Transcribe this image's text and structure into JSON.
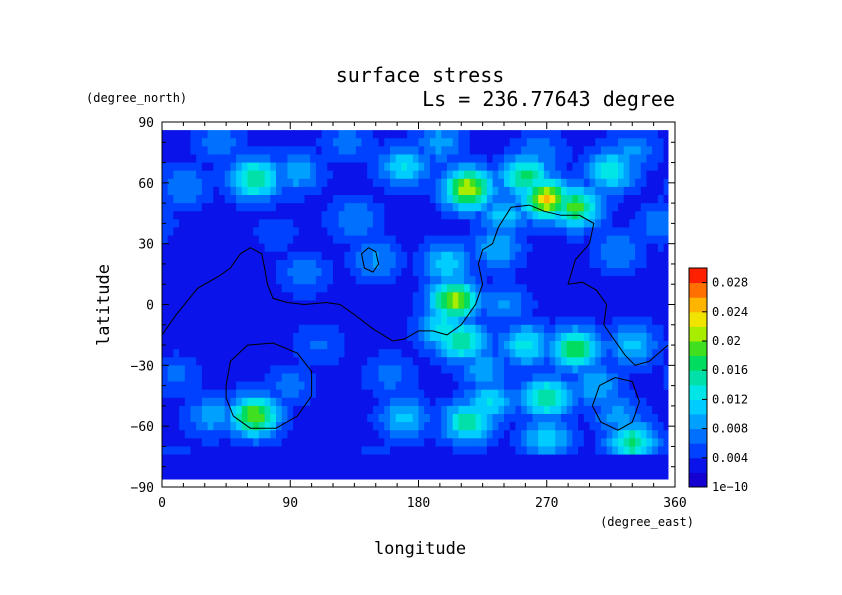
{
  "chart_data": {
    "type": "heatmap",
    "title": "surface stress",
    "subtitle": "Ls = 236.77643 degree",
    "xlabel": "longitude",
    "ylabel": "latitude",
    "x_unit": "(degree_east)",
    "y_unit": "(degree_north)",
    "xlim": [
      0,
      360
    ],
    "ylim": [
      -90,
      90
    ],
    "x_ticks": [
      0,
      90,
      180,
      270,
      360
    ],
    "x_tick_labels": [
      "0",
      "90",
      "180",
      "270",
      "360"
    ],
    "y_ticks": [
      90,
      60,
      30,
      0,
      -30,
      -60,
      -90
    ],
    "y_tick_labels": [
      "90",
      "60",
      "30",
      "0",
      "−30",
      "−60",
      "−90"
    ],
    "data_extent": {
      "lon": [
        0,
        355
      ],
      "lat": [
        -86,
        86
      ]
    },
    "background_value": 0.003,
    "colorbar": {
      "min": 0,
      "max": 0.03,
      "levels": 15,
      "colors": [
        "#1400d0",
        "#0a14ea",
        "#0040ff",
        "#0070ff",
        "#00a0ff",
        "#00ccff",
        "#00e6e6",
        "#00e0a8",
        "#00dc60",
        "#40e020",
        "#a8ec00",
        "#f0e400",
        "#ffb400",
        "#ff7000",
        "#ff2000"
      ],
      "tick_values": [
        0,
        0.004,
        0.008,
        0.012,
        0.016,
        0.02,
        0.024,
        0.028
      ],
      "tick_labels": [
        "1e−10",
        "0.004",
        "0.008",
        "0.012",
        "0.016",
        "0.02",
        "0.024",
        "0.028"
      ]
    },
    "features": [
      {
        "lon": 330,
        "lat": 76,
        "value": 0.0085
      },
      {
        "lon": 195,
        "lat": 80,
        "value": 0.009
      },
      {
        "lon": 265,
        "lat": 74,
        "value": 0.0082
      },
      {
        "lon": 65,
        "lat": 62,
        "value": 0.0165
      },
      {
        "lon": 95,
        "lat": 65,
        "value": 0.0095
      },
      {
        "lon": 15,
        "lat": 58,
        "value": 0.0082
      },
      {
        "lon": 170,
        "lat": 68,
        "value": 0.012
      },
      {
        "lon": 215,
        "lat": 57,
        "value": 0.022
      },
      {
        "lon": 255,
        "lat": 63,
        "value": 0.017
      },
      {
        "lon": 270,
        "lat": 52,
        "value": 0.024
      },
      {
        "lon": 290,
        "lat": 48,
        "value": 0.019
      },
      {
        "lon": 240,
        "lat": 44,
        "value": 0.011
      },
      {
        "lon": 235,
        "lat": 28,
        "value": 0.01
      },
      {
        "lon": 315,
        "lat": 66,
        "value": 0.014
      },
      {
        "lon": 200,
        "lat": 20,
        "value": 0.012
      },
      {
        "lon": 205,
        "lat": 2,
        "value": 0.021
      },
      {
        "lon": 198,
        "lat": -12,
        "value": 0.014
      },
      {
        "lon": 210,
        "lat": -18,
        "value": 0.0165
      },
      {
        "lon": 150,
        "lat": 22,
        "value": 0.0085
      },
      {
        "lon": 135,
        "lat": 42,
        "value": 0.0082
      },
      {
        "lon": 290,
        "lat": -22,
        "value": 0.0175
      },
      {
        "lon": 255,
        "lat": -20,
        "value": 0.013
      },
      {
        "lon": 330,
        "lat": -20,
        "value": 0.011
      },
      {
        "lon": 225,
        "lat": -32,
        "value": 0.0095
      },
      {
        "lon": 270,
        "lat": -46,
        "value": 0.016
      },
      {
        "lon": 230,
        "lat": -48,
        "value": 0.012
      },
      {
        "lon": 305,
        "lat": -40,
        "value": 0.01
      },
      {
        "lon": 65,
        "lat": -55,
        "value": 0.02
      },
      {
        "lon": 35,
        "lat": -55,
        "value": 0.0095
      },
      {
        "lon": 215,
        "lat": -58,
        "value": 0.016
      },
      {
        "lon": 170,
        "lat": -56,
        "value": 0.0105
      },
      {
        "lon": 330,
        "lat": -68,
        "value": 0.016
      },
      {
        "lon": 270,
        "lat": -66,
        "value": 0.012
      },
      {
        "lon": 110,
        "lat": -20,
        "value": 0.0065
      },
      {
        "lon": 100,
        "lat": 15,
        "value": 0.0075
      },
      {
        "lon": 320,
        "lat": 26,
        "value": 0.008
      },
      {
        "lon": 240,
        "lat": 0,
        "value": 0.0085
      },
      {
        "lon": 30,
        "lat": -5,
        "value": 0.004
      },
      {
        "lon": 80,
        "lat": 35,
        "value": 0.005
      },
      {
        "lon": 160,
        "lat": -35,
        "value": 0.007
      },
      {
        "lon": 320,
        "lat": -55,
        "value": 0.009
      },
      {
        "lon": 90,
        "lat": -40,
        "value": 0.007
      },
      {
        "lon": 10,
        "lat": -35,
        "value": 0.0065
      },
      {
        "lon": 40,
        "lat": 80,
        "value": 0.0078
      },
      {
        "lon": 130,
        "lat": 80,
        "value": 0.0072
      },
      {
        "lon": 350,
        "lat": 40,
        "value": 0.0075
      },
      {
        "lon": 10,
        "lat": -80,
        "value": 0.0055
      },
      {
        "lon": 150,
        "lat": -80,
        "value": 0.0055
      },
      {
        "lon": 280,
        "lat": -82,
        "value": 0.0055
      }
    ],
    "contours": [
      {
        "name": "dichotomy-boundary",
        "points": [
          [
            0,
            -15
          ],
          [
            10,
            -5
          ],
          [
            25,
            8
          ],
          [
            40,
            14
          ],
          [
            48,
            18
          ],
          [
            55,
            25
          ],
          [
            62,
            28
          ],
          [
            70,
            25
          ],
          [
            72,
            18
          ],
          [
            74,
            10
          ],
          [
            78,
            3
          ],
          [
            88,
            1
          ],
          [
            100,
            0
          ],
          [
            115,
            1
          ],
          [
            125,
            0
          ],
          [
            135,
            -5
          ],
          [
            148,
            -12
          ],
          [
            155,
            -15
          ],
          [
            162,
            -18
          ],
          [
            170,
            -17
          ],
          [
            180,
            -13
          ],
          [
            190,
            -13
          ],
          [
            200,
            -15
          ],
          [
            210,
            -10
          ],
          [
            220,
            0
          ],
          [
            225,
            10
          ],
          [
            222,
            20
          ],
          [
            225,
            27
          ],
          [
            232,
            30
          ],
          [
            236,
            38
          ],
          [
            245,
            48
          ],
          [
            258,
            49
          ],
          [
            268,
            46
          ],
          [
            280,
            44
          ],
          [
            293,
            44
          ],
          [
            303,
            40
          ],
          [
            300,
            30
          ],
          [
            290,
            22
          ],
          [
            285,
            10
          ],
          [
            295,
            11
          ],
          [
            305,
            7
          ],
          [
            312,
            0
          ],
          [
            310,
            -10
          ],
          [
            318,
            -18
          ],
          [
            325,
            -25
          ],
          [
            332,
            -30
          ],
          [
            342,
            -28
          ],
          [
            355,
            -20
          ]
        ]
      },
      {
        "name": "island-outline",
        "points": [
          [
            142,
            18
          ],
          [
            140,
            25
          ],
          [
            145,
            28
          ],
          [
            150,
            26
          ],
          [
            152,
            20
          ],
          [
            148,
            16
          ],
          [
            142,
            18
          ]
        ]
      },
      {
        "name": "hellas-outline",
        "points": [
          [
            45,
            -40
          ],
          [
            48,
            -28
          ],
          [
            60,
            -20
          ],
          [
            78,
            -19
          ],
          [
            95,
            -24
          ],
          [
            105,
            -33
          ],
          [
            105,
            -45
          ],
          [
            95,
            -55
          ],
          [
            80,
            -61
          ],
          [
            62,
            -61
          ],
          [
            50,
            -55
          ],
          [
            45,
            -46
          ],
          [
            45,
            -40
          ]
        ]
      },
      {
        "name": "argyre-outline",
        "points": [
          [
            302,
            -50
          ],
          [
            307,
            -40
          ],
          [
            318,
            -36
          ],
          [
            330,
            -38
          ],
          [
            335,
            -48
          ],
          [
            330,
            -58
          ],
          [
            320,
            -62
          ],
          [
            308,
            -58
          ],
          [
            302,
            -50
          ]
        ]
      }
    ]
  }
}
